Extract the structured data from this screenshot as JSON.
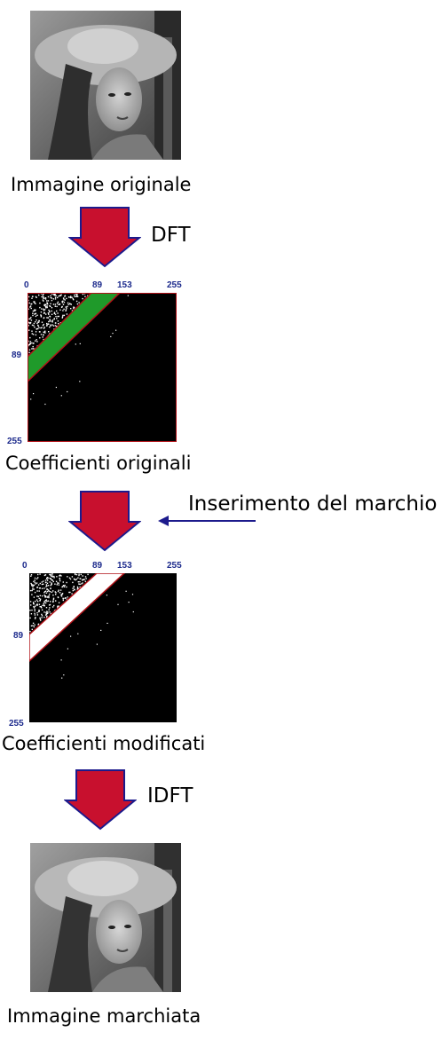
{
  "captions": {
    "original_image": "Immagine originale",
    "original_coeffs": "Coefficienti originali",
    "modified_coeffs": "Coefficienti modificati",
    "watermarked_image": "Immagine marchiata"
  },
  "operations": {
    "forward": "DFT",
    "embed": "Inserimento del marchio",
    "inverse": "IDFT"
  },
  "coefficient_plots": {
    "ticks_top": [
      "0",
      "89",
      "153",
      "255"
    ],
    "ticks_left": [
      "89",
      "255"
    ],
    "band_original_color": "#1f9a2a",
    "band_modified_color": "#ffffff",
    "band_edge_color": "#b01218"
  },
  "colors": {
    "arrow_fill": "#c8102e",
    "arrow_stroke": "#1c1a8c",
    "tick_color": "#1c2a8c"
  }
}
